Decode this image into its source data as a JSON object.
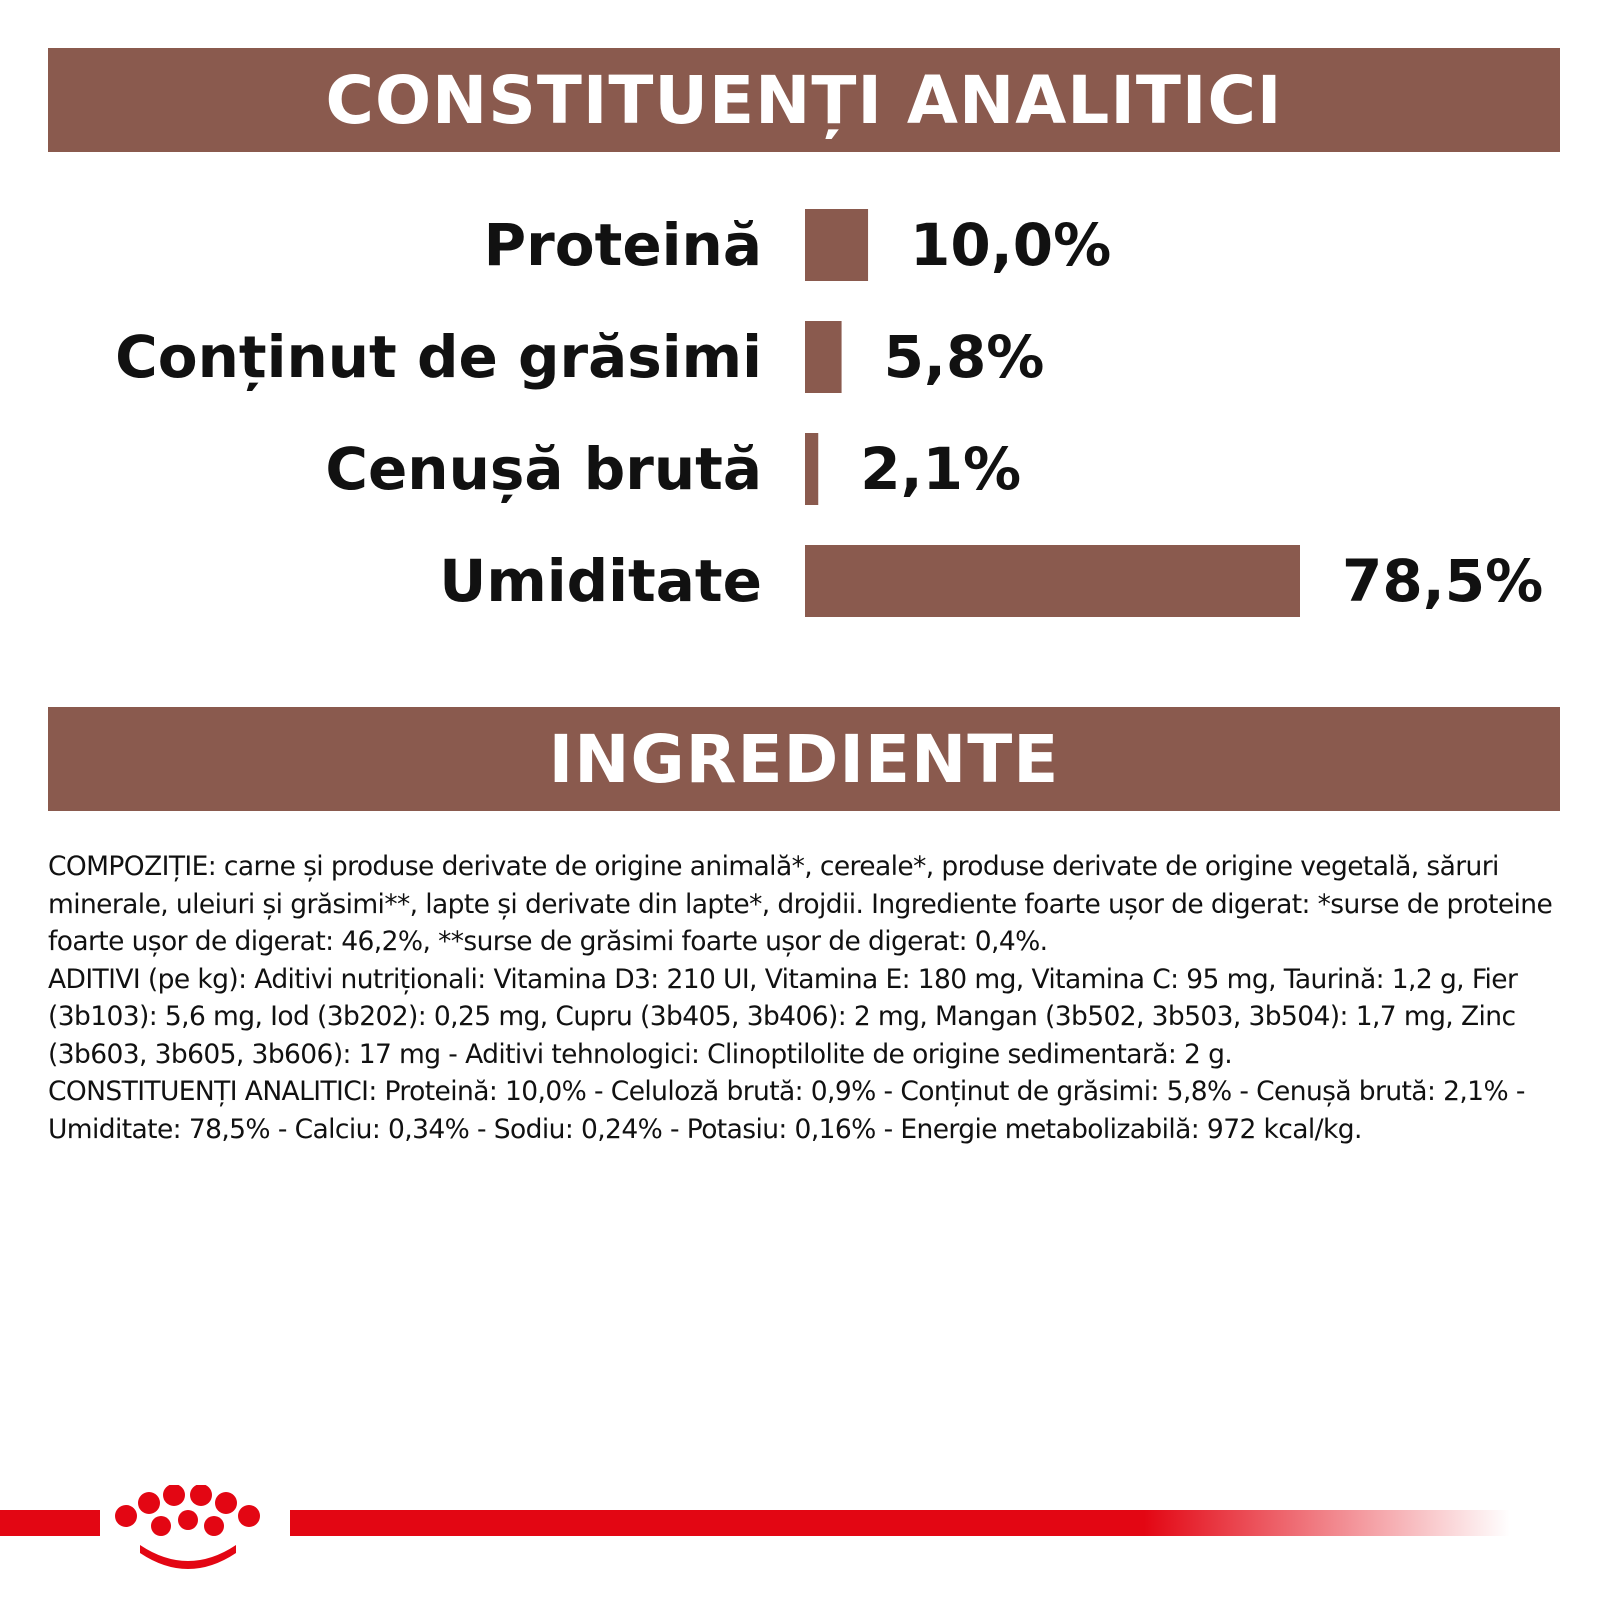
{
  "colors": {
    "accent": "#8a5a4e",
    "brand_red": "#e30613",
    "text": "#111111"
  },
  "sections": {
    "analytic_title": "CONSTITUENȚI ANALITICI",
    "ingredients_title": "INGREDIENTE"
  },
  "chart_data": {
    "type": "bar",
    "orientation": "horizontal",
    "categories": [
      "Proteină",
      "Conținut de grăsimi",
      "Cenușă brută",
      "Umiditate"
    ],
    "values": [
      10.0,
      5.8,
      2.1,
      78.5
    ],
    "value_labels": [
      "10,0%",
      "5,8%",
      "2,1%",
      "78,5%"
    ],
    "xlim": [
      0,
      78.5
    ],
    "grid": false,
    "title": "",
    "xlabel": "",
    "ylabel": ""
  },
  "ingredients": {
    "text": "COMPOZIȚIE: carne și produse derivate de origine animală*, cereale*, produse derivate de origine vegetală, săruri minerale, uleiuri și grăsimi**, lapte și derivate din lapte*, drojdii. Ingrediente foarte ușor de digerat: *surse de proteine foarte ușor de digerat: 46,2%, **surse de grăsimi foarte ușor de digerat: 0,4%.\nADITIVI (pe kg): Aditivi nutriționali: Vitamina D3: 210 UI, Vitamina E: 180 mg, Vitamina C: 95 mg, Taurină: 1,2 g, Fier (3b103): 5,6 mg, Iod (3b202): 0,25 mg, Cupru (3b405, 3b406): 2 mg, Mangan (3b502, 3b503, 3b504): 1,7 mg, Zinc (3b603, 3b605, 3b606): 17 mg - Aditivi tehnologici: Clinoptilolite de origine sedimentară: 2 g.\nCONSTITUENȚI ANALITICI: Proteină: 10,0% - Celuloză brută: 0,9% - Conținut de grăsimi: 5,8% - Cenușă brută: 2,1% - Umiditate: 78,5% - Calciu: 0,34% - Sodiu: 0,24% - Potasiu: 0,16% - Energie metabolizabilă: 972 kcal/kg."
  },
  "brand": {
    "logo_icon": "royal-canin-crown-icon"
  }
}
